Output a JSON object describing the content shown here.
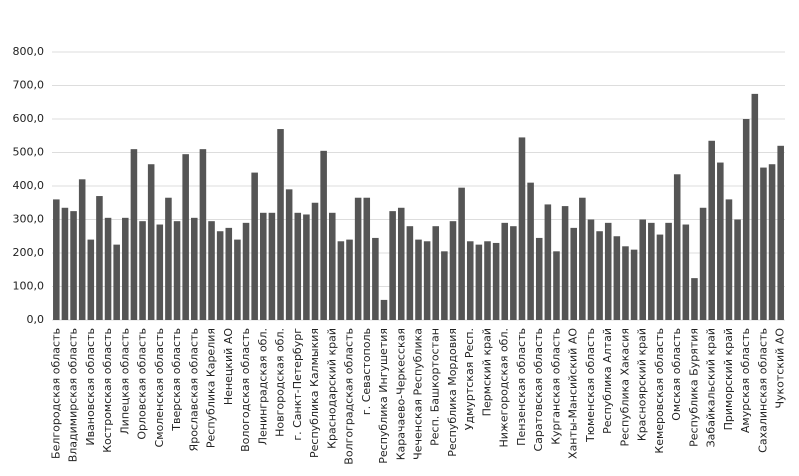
{
  "chart_data": {
    "type": "bar",
    "color": "#555555",
    "grid": true,
    "categories": [
      "Белгородская область",
      null,
      "Владимирская область",
      null,
      "Ивановская область",
      null,
      "Костромская область",
      null,
      "Липецкая область",
      null,
      "Орловская область",
      null,
      "Смоленская область",
      null,
      "Тверская область",
      null,
      "Ярославская область",
      null,
      "Республика Карелия",
      null,
      "Ненецкий АО",
      null,
      "Вологодская область",
      null,
      "Ленинградская обл.",
      null,
      "Новгородская обл.",
      null,
      "г. Санкт-Петербург",
      null,
      "Республика Калмыкия",
      null,
      "Краснодарский край",
      null,
      "Волгоградская область",
      null,
      "г. Севастополь",
      null,
      "Республика Ингушетия",
      null,
      "Карачаево-Черкесская",
      null,
      "Чеченская Республика",
      null,
      "Респ. Башкортостан",
      null,
      "Республика Мордовия",
      null,
      "Удмуртская Респ.",
      null,
      "Пермский край",
      null,
      "Нижегородская обл.",
      null,
      "Пензенская область",
      null,
      "Саратовская область",
      null,
      "Курганская область",
      null,
      "Ханты-Мансийский АО",
      null,
      "Тюменская область",
      null,
      "Республика Алтай",
      null,
      "Республика Хакасия",
      null,
      "Красноярский край",
      null,
      "Кемеровская область",
      null,
      "Омская область",
      null,
      "Республика Бурятия",
      null,
      "Забайкальский край",
      null,
      "Приморский край",
      null,
      "Амурская область",
      null,
      "Сахалинская область",
      null,
      "Чукотский АО"
    ],
    "values": [
      360,
      335,
      325,
      420,
      240,
      370,
      305,
      225,
      305,
      510,
      295,
      465,
      285,
      365,
      295,
      495,
      305,
      510,
      295,
      265,
      275,
      240,
      290,
      440,
      320,
      320,
      570,
      390,
      320,
      315,
      350,
      505,
      320,
      235,
      240,
      365,
      365,
      245,
      60,
      325,
      335,
      280,
      240,
      235,
      280,
      205,
      295,
      395,
      235,
      225,
      235,
      230,
      290,
      280,
      545,
      410,
      245,
      345,
      205,
      340,
      275,
      365,
      300,
      265,
      290,
      250,
      220,
      210,
      300,
      290,
      255,
      290,
      435,
      285,
      125,
      335,
      535,
      470,
      360,
      300,
      600,
      675,
      455,
      465,
      520
    ],
    "ylim": [
      0,
      800
    ],
    "yticks": [
      {
        "value": 0,
        "label": "0,0"
      },
      {
        "value": 100,
        "label": "100,0"
      },
      {
        "value": 200,
        "label": "200,0"
      },
      {
        "value": 300,
        "label": "300,0"
      },
      {
        "value": 400,
        "label": "400,0"
      },
      {
        "value": 500,
        "label": "500,0"
      },
      {
        "value": 600,
        "label": "600,0"
      },
      {
        "value": 700,
        "label": "700,0"
      },
      {
        "value": 800,
        "label": "800,0"
      }
    ]
  }
}
